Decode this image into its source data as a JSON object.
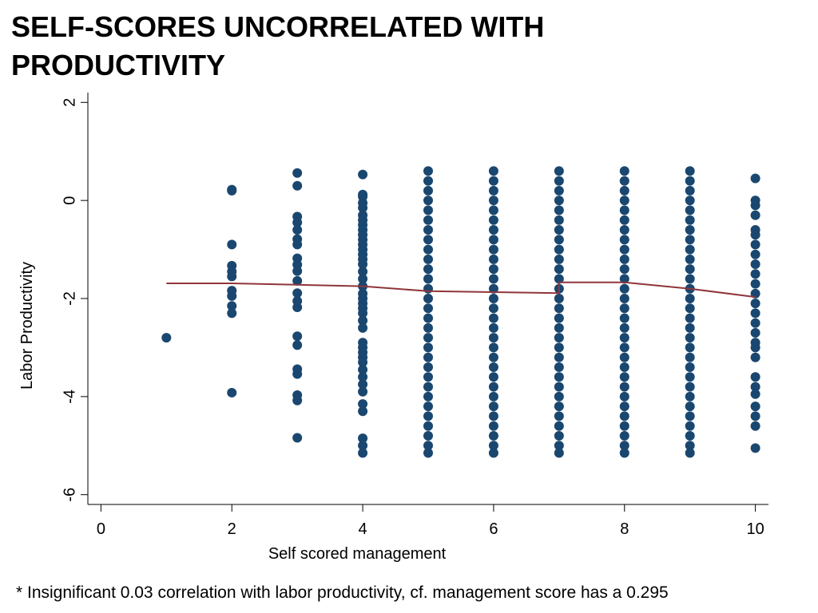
{
  "chart_data": {
    "type": "scatter",
    "title": "SELF-SCORES UNCORRELATED WITH PRODUCTIVITY",
    "x_label": "Self scored management",
    "y_label": "Labor Productivity",
    "note": "* Insignificant 0.03 correlation with labor productivity, cf. management score has a 0.295",
    "xlim": [
      -0.2,
      10.2
    ],
    "ylim": [
      -6.2,
      2.2
    ],
    "xticks": [
      0,
      2,
      4,
      6,
      8,
      10
    ],
    "yticks": [
      2,
      0,
      -2,
      -4,
      -6
    ],
    "series": [
      {
        "type": "scatter",
        "color": "#1a476f",
        "x": [
          1,
          2,
          2,
          2,
          2,
          2,
          2,
          2,
          2,
          2,
          2,
          2,
          3,
          3,
          3,
          3,
          3,
          3,
          3,
          3,
          3,
          3,
          3,
          3,
          3,
          3,
          3,
          3,
          3,
          3,
          3,
          3,
          3,
          4,
          4,
          4,
          4,
          4,
          4,
          4,
          4,
          4,
          4,
          4,
          4,
          4,
          4,
          4,
          4,
          4,
          4,
          4,
          4,
          4,
          4,
          4,
          4,
          4,
          4,
          4,
          4,
          4,
          4,
          4,
          4,
          4,
          4,
          4,
          4,
          4,
          4,
          4,
          4,
          5,
          5,
          5,
          5,
          5,
          5,
          5,
          5,
          5,
          5,
          5,
          5,
          5,
          5,
          5,
          5,
          5,
          5,
          5,
          5,
          5,
          5,
          5,
          5,
          5,
          5,
          5,
          5,
          5,
          5,
          6,
          6,
          6,
          6,
          6,
          6,
          6,
          6,
          6,
          6,
          6,
          6,
          6,
          6,
          6,
          6,
          6,
          6,
          6,
          6,
          6,
          6,
          6,
          6,
          6,
          6,
          6,
          6,
          6,
          6,
          7,
          7,
          7,
          7,
          7,
          7,
          7,
          7,
          7,
          7,
          7,
          7,
          7,
          7,
          7,
          7,
          7,
          7,
          7,
          7,
          7,
          7,
          7,
          7,
          7,
          7,
          7,
          7,
          7,
          7,
          8,
          8,
          8,
          8,
          8,
          8,
          8,
          8,
          8,
          8,
          8,
          8,
          8,
          8,
          8,
          8,
          8,
          8,
          8,
          8,
          8,
          8,
          8,
          8,
          8,
          8,
          8,
          8,
          8,
          8,
          9,
          9,
          9,
          9,
          9,
          9,
          9,
          9,
          9,
          9,
          9,
          9,
          9,
          9,
          9,
          9,
          9,
          9,
          9,
          9,
          9,
          9,
          9,
          9,
          9,
          9,
          9,
          9,
          9,
          9,
          10,
          10,
          10,
          10,
          10,
          10,
          10,
          10,
          10,
          10,
          10,
          10,
          10,
          10,
          10,
          10,
          10,
          10,
          10,
          10,
          10,
          10,
          10,
          10,
          10,
          10
        ],
        "values": [
          -2.8,
          0.22,
          0.2,
          -0.9,
          -1.33,
          -1.45,
          -1.55,
          -1.84,
          -1.95,
          -2.15,
          -2.3,
          -3.92,
          0.56,
          0.3,
          -0.33,
          -0.45,
          -0.6,
          -0.79,
          -0.9,
          -1.18,
          -1.31,
          -1.44,
          -1.64,
          -1.89,
          -2.05,
          -2.18,
          -2.77,
          -2.95,
          -3.44,
          -3.54,
          -3.97,
          -4.08,
          -4.84,
          0.53,
          0.12,
          0.08,
          -0.05,
          -0.15,
          -0.3,
          -0.4,
          -0.5,
          -0.6,
          -0.7,
          -0.8,
          -0.9,
          -1.0,
          -1.1,
          -1.2,
          -1.3,
          -1.45,
          -1.6,
          -1.75,
          -1.9,
          -2.0,
          -2.1,
          -2.2,
          -2.3,
          -2.45,
          -2.6,
          -2.9,
          -3.0,
          -3.1,
          -3.2,
          -3.3,
          -3.45,
          -3.6,
          -3.75,
          -3.9,
          -4.15,
          -4.3,
          -4.85,
          -5.0,
          -5.15,
          0.6,
          0.4,
          0.2,
          0,
          -0.2,
          -0.4,
          -0.6,
          -0.8,
          -1,
          -1.2,
          -1.4,
          -1.6,
          -1.8,
          -2,
          -2.2,
          -2.4,
          -2.6,
          -2.8,
          -3,
          -3.2,
          -3.4,
          -3.6,
          -3.8,
          -4,
          -4.2,
          -4.4,
          -4.6,
          -4.8,
          -5,
          -5.15,
          0.6,
          0.4,
          0.2,
          0,
          -0.2,
          -0.4,
          -0.6,
          -0.8,
          -1,
          -1.2,
          -1.4,
          -1.6,
          -1.8,
          -2,
          -2.2,
          -2.4,
          -2.6,
          -2.8,
          -3,
          -3.2,
          -3.4,
          -3.6,
          -3.8,
          -4,
          -4.2,
          -4.4,
          -4.6,
          -4.8,
          -5,
          -5.15,
          0.6,
          0.4,
          0.2,
          0,
          -0.2,
          -0.4,
          -0.6,
          -0.8,
          -1,
          -1.2,
          -1.4,
          -1.6,
          -1.8,
          -2,
          -2.2,
          -2.4,
          -2.6,
          -2.8,
          -3,
          -3.2,
          -3.4,
          -3.6,
          -3.8,
          -4,
          -4.2,
          -4.4,
          -4.6,
          -4.8,
          -5,
          -5.15,
          0.6,
          0.4,
          0.2,
          0,
          -0.2,
          -0.4,
          -0.6,
          -0.8,
          -1,
          -1.2,
          -1.4,
          -1.6,
          -1.8,
          -2,
          -2.2,
          -2.4,
          -2.6,
          -2.8,
          -3,
          -3.2,
          -3.4,
          -3.6,
          -3.8,
          -4,
          -4.2,
          -4.4,
          -4.6,
          -4.8,
          -5,
          -5.15,
          0.6,
          0.4,
          0.2,
          0,
          -0.2,
          -0.4,
          -0.6,
          -0.8,
          -1,
          -1.2,
          -1.4,
          -1.6,
          -1.8,
          -2,
          -2.2,
          -2.4,
          -2.6,
          -2.8,
          -3,
          -3.2,
          -3.4,
          -3.6,
          -3.8,
          -4,
          -4.2,
          -4.4,
          -4.6,
          -4.8,
          -5,
          -5.15,
          0.45,
          0,
          -0.1,
          -0.3,
          -0.6,
          -0.7,
          -0.9,
          -1.1,
          -1.3,
          -1.5,
          -1.7,
          -1.9,
          -2.1,
          -2.3,
          -2.5,
          -2.7,
          -2.9,
          -3.0,
          -3.2,
          -3.6,
          -3.8,
          -3.95,
          -4.2,
          -4.4,
          -4.6,
          -5.05
        ]
      },
      {
        "type": "line",
        "color": "#90353b",
        "x": [
          1,
          2,
          3,
          4,
          5,
          6,
          7,
          7,
          8,
          9,
          10
        ],
        "values": [
          -1.69,
          -1.69,
          -1.72,
          -1.75,
          -1.85,
          -1.87,
          -1.89,
          -1.67,
          -1.67,
          -1.8,
          -1.97
        ]
      }
    ]
  }
}
